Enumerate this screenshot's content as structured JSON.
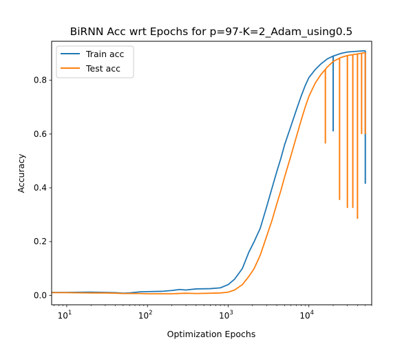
{
  "chart_data": {
    "type": "line",
    "title": "BiRNN Acc wrt Epochs for p=97-K=2_Adam_using0.5",
    "xlabel": "Optimization Epochs",
    "ylabel": "Accuracy",
    "xscale": "log",
    "xlim": [
      6.5,
      60000
    ],
    "ylim": [
      -0.035,
      0.945
    ],
    "grid": false,
    "legend_position": "upper-left",
    "x_ticks": [
      {
        "value": 10,
        "label": "10",
        "sup": "1"
      },
      {
        "value": 100,
        "label": "10",
        "sup": "2"
      },
      {
        "value": 1000,
        "label": "10",
        "sup": "3"
      },
      {
        "value": 10000,
        "label": "10",
        "sup": "4"
      }
    ],
    "y_ticks": [
      {
        "value": 0.0,
        "label": "0.0"
      },
      {
        "value": 0.2,
        "label": "0.2"
      },
      {
        "value": 0.4,
        "label": "0.4"
      },
      {
        "value": 0.6,
        "label": "0.6"
      },
      {
        "value": 0.8,
        "label": "0.8"
      }
    ],
    "series": [
      {
        "name": "Train acc",
        "color": "#1f77b4",
        "points": [
          [
            6.5,
            0.011
          ],
          [
            10,
            0.011
          ],
          [
            20,
            0.012
          ],
          [
            30,
            0.011
          ],
          [
            40,
            0.01
          ],
          [
            50,
            0.008
          ],
          [
            60,
            0.009
          ],
          [
            80,
            0.013
          ],
          [
            100,
            0.014
          ],
          [
            150,
            0.015
          ],
          [
            200,
            0.018
          ],
          [
            250,
            0.022
          ],
          [
            300,
            0.02
          ],
          [
            400,
            0.024
          ],
          [
            600,
            0.025
          ],
          [
            800,
            0.028
          ],
          [
            1000,
            0.04
          ],
          [
            1200,
            0.06
          ],
          [
            1500,
            0.1
          ],
          [
            1800,
            0.16
          ],
          [
            2100,
            0.2
          ],
          [
            2500,
            0.25
          ],
          [
            3000,
            0.33
          ],
          [
            3500,
            0.4
          ],
          [
            4000,
            0.46
          ],
          [
            4500,
            0.51
          ],
          [
            5000,
            0.56
          ],
          [
            6000,
            0.63
          ],
          [
            7000,
            0.69
          ],
          [
            8000,
            0.74
          ],
          [
            9000,
            0.78
          ],
          [
            10000,
            0.81
          ],
          [
            12000,
            0.84
          ],
          [
            14000,
            0.86
          ],
          [
            17000,
            0.88
          ],
          [
            20000,
            0.89
          ],
          [
            25000,
            0.9
          ],
          [
            30000,
            0.905
          ],
          [
            40000,
            0.908
          ],
          [
            50000,
            0.91
          ]
        ],
        "spikes": [
          {
            "x": 20000,
            "low": 0.61
          },
          {
            "x": 50000,
            "low": 0.415
          }
        ]
      },
      {
        "name": "Test acc",
        "color": "#ff7f0e",
        "points": [
          [
            6.5,
            0.01
          ],
          [
            10,
            0.01
          ],
          [
            20,
            0.009
          ],
          [
            30,
            0.009
          ],
          [
            40,
            0.008
          ],
          [
            50,
            0.007
          ],
          [
            60,
            0.007
          ],
          [
            80,
            0.007
          ],
          [
            100,
            0.006
          ],
          [
            150,
            0.006
          ],
          [
            200,
            0.006
          ],
          [
            300,
            0.008
          ],
          [
            400,
            0.007
          ],
          [
            600,
            0.008
          ],
          [
            800,
            0.009
          ],
          [
            1000,
            0.012
          ],
          [
            1200,
            0.02
          ],
          [
            1500,
            0.04
          ],
          [
            1800,
            0.07
          ],
          [
            2100,
            0.1
          ],
          [
            2500,
            0.15
          ],
          [
            3000,
            0.22
          ],
          [
            3500,
            0.28
          ],
          [
            4000,
            0.34
          ],
          [
            4500,
            0.39
          ],
          [
            5000,
            0.44
          ],
          [
            6000,
            0.52
          ],
          [
            7000,
            0.59
          ],
          [
            8000,
            0.65
          ],
          [
            9000,
            0.7
          ],
          [
            10000,
            0.74
          ],
          [
            12000,
            0.79
          ],
          [
            14000,
            0.82
          ],
          [
            17000,
            0.85
          ],
          [
            20000,
            0.87
          ],
          [
            25000,
            0.885
          ],
          [
            30000,
            0.892
          ],
          [
            40000,
            0.898
          ],
          [
            50000,
            0.903
          ]
        ],
        "spikes": [
          {
            "x": 16000,
            "low": 0.565
          },
          {
            "x": 24000,
            "low": 0.355
          },
          {
            "x": 30000,
            "low": 0.325
          },
          {
            "x": 35000,
            "low": 0.325
          },
          {
            "x": 40000,
            "low": 0.285
          },
          {
            "x": 45000,
            "low": 0.6
          },
          {
            "x": 50000,
            "low": 0.6
          }
        ]
      }
    ]
  }
}
